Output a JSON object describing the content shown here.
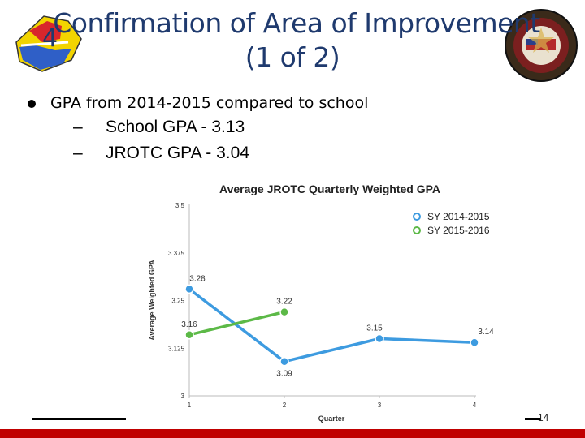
{
  "slide": {
    "number": "4",
    "title_line1": "Confirmation of Area of Improvement",
    "title_line2": "(1 of 2)",
    "page_number": "14"
  },
  "bullets": {
    "main": "GPA from 2014-2015 compared to school",
    "sub": [
      {
        "dash": "–",
        "text": "School GPA - 3.13"
      },
      {
        "dash": "–",
        "text": "JROTC GPA - 3.04"
      }
    ]
  },
  "logos": {
    "left": "state-shield-logo",
    "right": "jrotc-unit-emblem"
  },
  "colors": {
    "title": "#1f3a6e",
    "series1": "#3d9be0",
    "series2": "#5cb947",
    "footer": "#c00000"
  },
  "chart_data": {
    "type": "line",
    "title": "Average JROTC Quarterly Weighted GPA",
    "xlabel": "Quarter",
    "ylabel": "Average Weighted GPA",
    "x": [
      1,
      2,
      3,
      4
    ],
    "x_tick_labels": [
      "1",
      "2",
      "3",
      "4"
    ],
    "ylim": [
      3,
      3.5
    ],
    "y_ticks": [
      3,
      3.125,
      3.25,
      3.375,
      3.5
    ],
    "y_tick_labels": [
      "3",
      "3.125",
      "3.25",
      "3.375",
      "3.5"
    ],
    "legend_position": "top-right",
    "series": [
      {
        "name": "SY 2014-2015",
        "color": "#3d9be0",
        "x": [
          1,
          2,
          3,
          4
        ],
        "values": [
          3.28,
          3.09,
          3.15,
          3.14
        ],
        "labels": [
          "3.28",
          "3.09",
          "3.15",
          "3.14"
        ]
      },
      {
        "name": "SY 2015-2016",
        "color": "#5cb947",
        "x": [
          1,
          2
        ],
        "values": [
          3.16,
          3.22
        ],
        "labels": [
          "3.16",
          "3.22"
        ]
      }
    ]
  }
}
